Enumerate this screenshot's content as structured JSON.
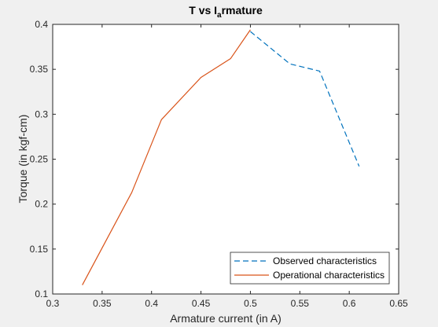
{
  "chart_data": {
    "type": "line",
    "title": {
      "main": "T vs I",
      "subscript": "a",
      "rest": "rmature"
    },
    "xlabel": "Armature current (in A)",
    "ylabel": "Torque (in kgf-cm)",
    "xlim": [
      0.3,
      0.65
    ],
    "ylim": [
      0.1,
      0.4
    ],
    "xticks": [
      0.3,
      0.35,
      0.4,
      0.45,
      0.5,
      0.55,
      0.6,
      0.65
    ],
    "xtick_labels": [
      "0.3",
      "0.35",
      "0.4",
      "0.45",
      "0.5",
      "0.55",
      "0.6",
      "0.65"
    ],
    "yticks": [
      0.1,
      0.15,
      0.2,
      0.25,
      0.3,
      0.35,
      0.4
    ],
    "ytick_labels": [
      "0.1",
      "0.15",
      "0.2",
      "0.25",
      "0.3",
      "0.35",
      "0.4"
    ],
    "grid": false,
    "legend_position": "bottom-right",
    "series": [
      {
        "name": "Observed characteristics",
        "style": "dashed",
        "color": "#0072bd",
        "x": [
          0.5,
          0.54,
          0.57,
          0.61
        ],
        "y": [
          0.392,
          0.356,
          0.348,
          0.242
        ]
      },
      {
        "name": "Operational characteristics",
        "style": "solid",
        "color": "#d95319",
        "x": [
          0.33,
          0.38,
          0.41,
          0.45,
          0.48,
          0.5
        ],
        "y": [
          0.11,
          0.213,
          0.294,
          0.341,
          0.362,
          0.394
        ]
      }
    ]
  },
  "colors": {
    "figure_background": "#f0f0f0",
    "axes_background": "#ffffff",
    "axes_line": "#262626"
  }
}
